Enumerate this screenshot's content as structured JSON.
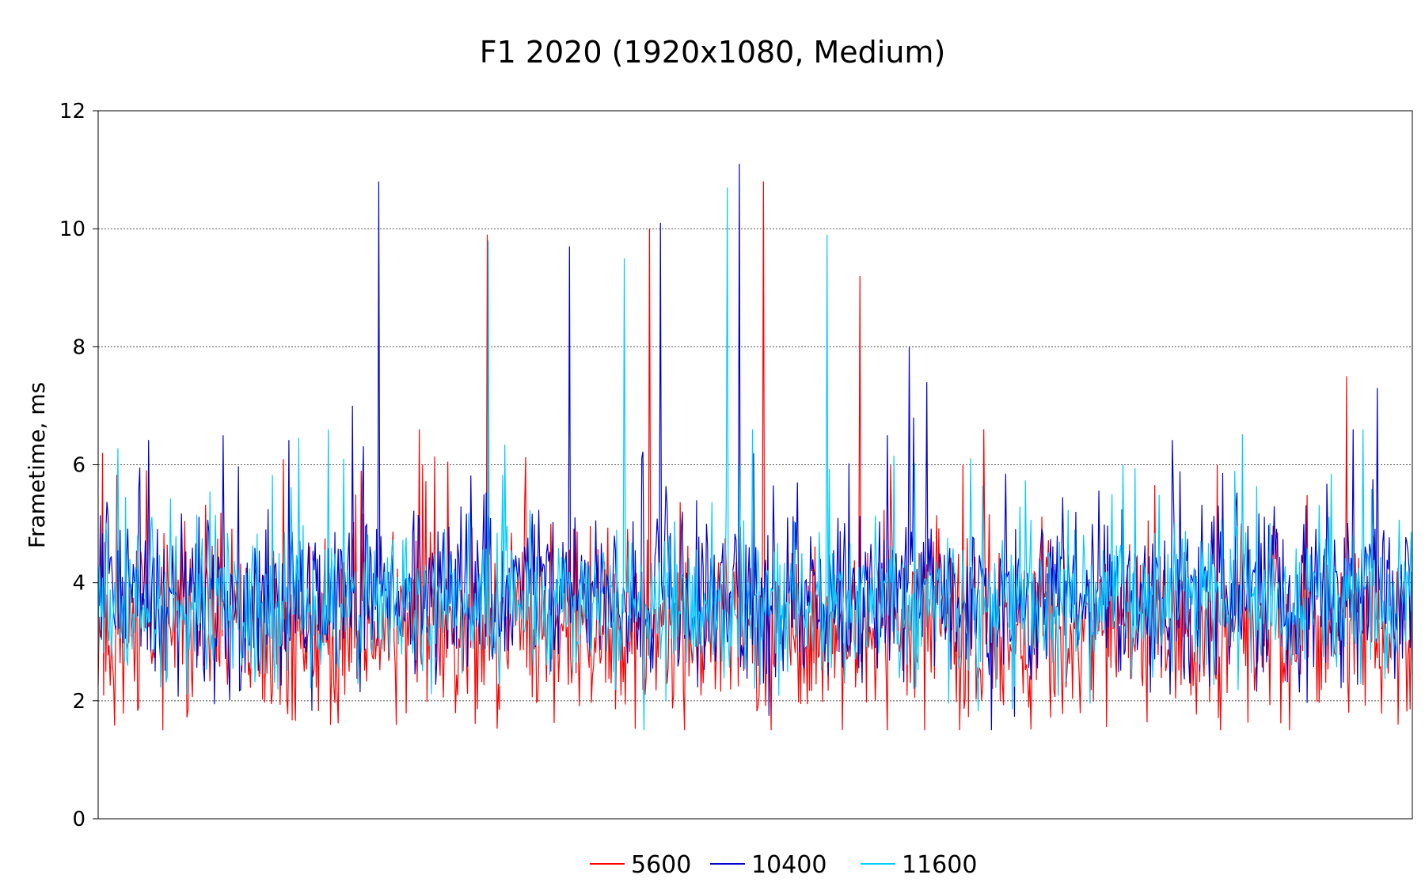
{
  "chart_data": {
    "type": "line",
    "title": "F1 2020 (1920x1080, Medium)",
    "xlabel": "",
    "ylabel": "Frametime, ms",
    "ylim": [
      0,
      12
    ],
    "yticks": [
      0,
      2,
      4,
      6,
      8,
      10,
      12
    ],
    "grid": true,
    "legend_position": "bottom",
    "series_length": 1200,
    "series": [
      {
        "name": "5600",
        "color": "#ff0000",
        "baseline": 3.2,
        "spread": 1.1,
        "seed": 11,
        "spikes": [
          [
            4,
            6.2
          ],
          [
            240,
            5.9
          ],
          [
            296,
            6.0
          ],
          [
            355,
            9.9
          ],
          [
            503,
            10.0
          ],
          [
            607,
            10.8
          ],
          [
            723,
            6.0
          ],
          [
            695,
            9.2
          ],
          [
            789,
            6.0
          ],
          [
            808,
            6.6
          ],
          [
            1021,
            6.0
          ],
          [
            1139,
            7.5
          ]
        ]
      },
      {
        "name": "10400",
        "color": "#0000cc",
        "baseline": 3.8,
        "spread": 1.0,
        "seed": 29,
        "spikes": [
          [
            114,
            6.5
          ],
          [
            256,
            10.8
          ],
          [
            232,
            7.0
          ],
          [
            430,
            9.7
          ],
          [
            513,
            10.1
          ],
          [
            585,
            11.1
          ],
          [
            720,
            6.5
          ],
          [
            740,
            8.0
          ],
          [
            756,
            7.4
          ],
          [
            744,
            6.8
          ],
          [
            1167,
            7.3
          ]
        ]
      },
      {
        "name": "11600",
        "color": "#00ccff",
        "baseline": 3.6,
        "spread": 0.9,
        "seed": 47,
        "spikes": [
          [
            224,
            6.1
          ],
          [
            356,
            9.8
          ],
          [
            480,
            9.5
          ],
          [
            574,
            10.7
          ],
          [
            665,
            9.9
          ],
          [
            935,
            6.0
          ],
          [
            1037,
            5.9
          ],
          [
            1154,
            6.6
          ]
        ]
      }
    ]
  }
}
